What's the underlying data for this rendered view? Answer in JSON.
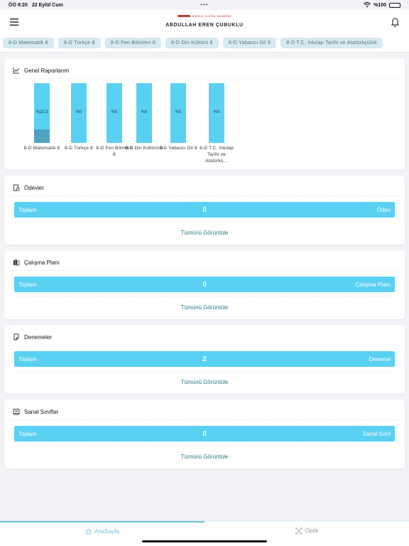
{
  "status": {
    "time": "ÖÖ 9:20",
    "date": "22 Eylül Cum",
    "battery": "%100"
  },
  "header": {
    "brand_small": "BİRİKİŞ DİJİTAL AKADEMİ",
    "user_name": "ABDULLAH EREN ÇUBUKLU"
  },
  "tabs": [
    "8-D Matematik 8",
    "8-D Türkçe 8",
    "8-D Fen Bilimleri 8",
    "8-D Din Kültürü 8",
    "8-D Yabancı Dil 8",
    "8-D T.C. İnkılap Tarihi ve Atatürkçülük"
  ],
  "reports": {
    "title": "Genel Raporlarım",
    "chart_data": {
      "type": "bar",
      "categories": [
        "8-D Matematik 8",
        "8-D Türkçe 8",
        "8-D Fen Bilimleri 8",
        "8-D Din Kültürü 8",
        "8-D Yabancı Dil 8",
        "8-D T.C. İnkılap Tarihi ve Atatürkç..."
      ],
      "values": [
        22.3,
        0,
        0,
        0,
        0,
        0
      ],
      "labels": [
        "%22.3",
        "%0",
        "%0",
        "%0",
        "%0",
        "%0"
      ],
      "ylim": [
        0,
        100
      ]
    }
  },
  "homework": {
    "title": "Ödevler",
    "left": "Toplam",
    "value": "0",
    "right": "Ödev",
    "view_all": "Tümünü Görüntüle"
  },
  "study_plan": {
    "title": "Çalışma Planı",
    "left": "Toplam",
    "value": "0",
    "right": "Çalışma Planı",
    "view_all": "Tümünü Görüntüle"
  },
  "exams": {
    "title": "Denemeler",
    "left": "Toplam",
    "value": "2",
    "right": "Deneme",
    "view_all": "Tümünü Görüntüle"
  },
  "virtual_classes": {
    "title": "Sanal Sınıflar",
    "left": "Toplam",
    "value": "0",
    "right": "Sanal Sınıf",
    "view_all": "Tümünü Görüntüle"
  },
  "nav": {
    "home": "AnaSayfa",
    "optic": "Optik"
  },
  "colors": {
    "accent": "#5ad1f2",
    "bar_done": "#4fa3c0",
    "tab_bg": "#d6eaf0",
    "link": "#2b7a8e"
  }
}
